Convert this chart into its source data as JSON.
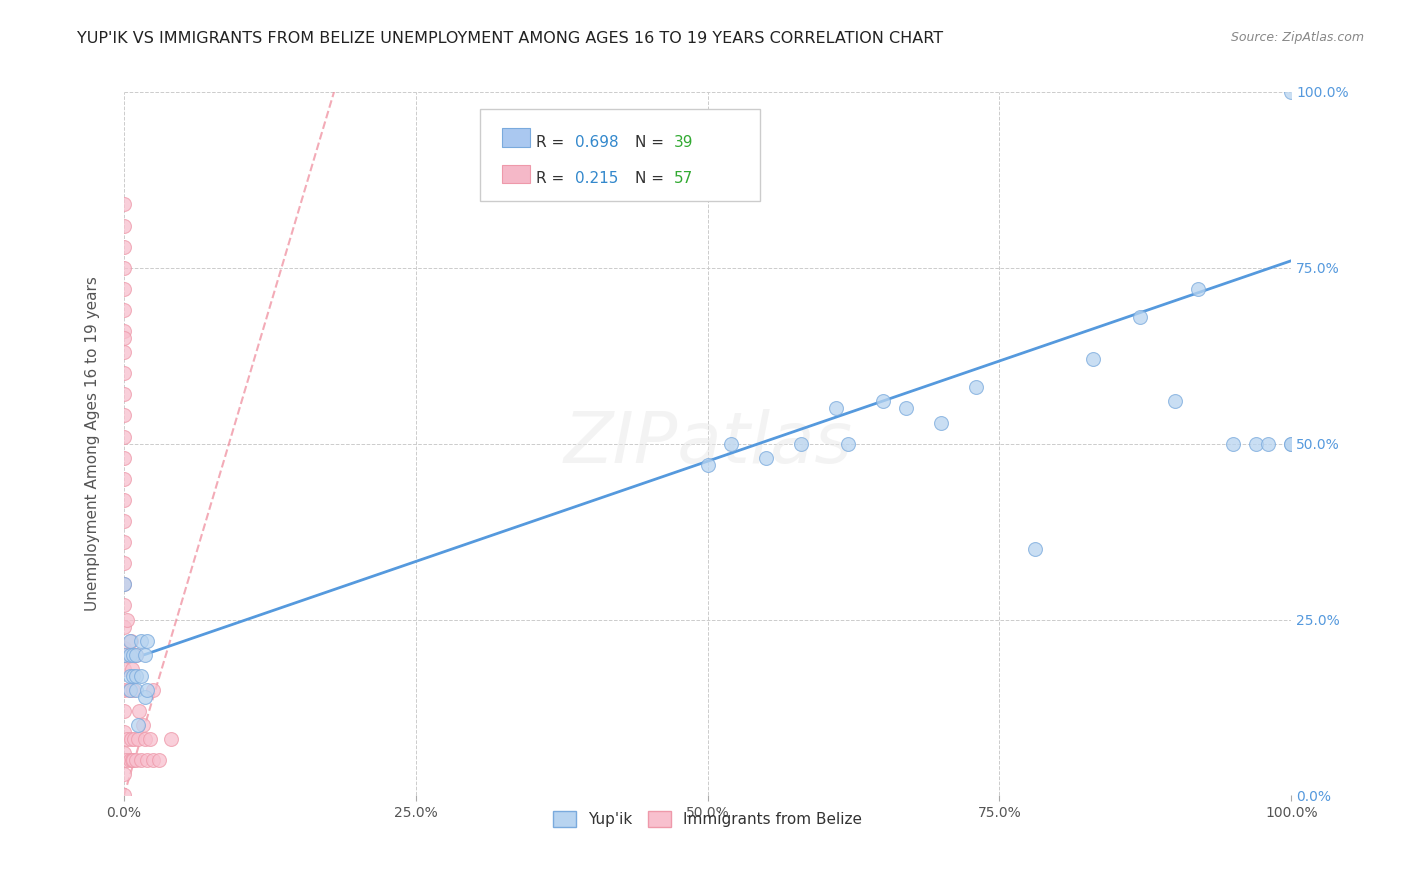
{
  "title": "YUP'IK VS IMMIGRANTS FROM BELIZE UNEMPLOYMENT AMONG AGES 16 TO 19 YEARS CORRELATION CHART",
  "source": "Source: ZipAtlas.com",
  "ylabel": "Unemployment Among Ages 16 to 19 years",
  "xlim": [
    0.0,
    1.0
  ],
  "ylim": [
    0.0,
    1.0
  ],
  "legend_color1": "#aac8f0",
  "legend_color2": "#f5b8c8",
  "r_color": "#3388cc",
  "n_color": "#33aa33",
  "blue_line_color": "#5599dd",
  "pink_line_color": "#ee8899",
  "dot_blue_face": "#b8d4f0",
  "dot_blue_edge": "#7aaadd",
  "dot_pink_face": "#f8c0ce",
  "dot_pink_edge": "#ee99aa",
  "grid_color": "#cccccc",
  "bg_color": "#ffffff",
  "title_color": "#222222",
  "right_tick_color": "#5599dd",
  "yupik_x": [
    0.0,
    0.0,
    0.005,
    0.005,
    0.005,
    0.005,
    0.008,
    0.008,
    0.01,
    0.01,
    0.01,
    0.012,
    0.015,
    0.015,
    0.018,
    0.018,
    0.02,
    0.02,
    0.5,
    0.52,
    0.55,
    0.58,
    0.61,
    0.62,
    0.65,
    0.67,
    0.7,
    0.73,
    0.78,
    0.83,
    0.87,
    0.9,
    0.92,
    0.95,
    0.97,
    0.98,
    1.0,
    1.0,
    1.0
  ],
  "yupik_y": [
    0.3,
    0.2,
    0.15,
    0.17,
    0.2,
    0.22,
    0.17,
    0.2,
    0.15,
    0.17,
    0.2,
    0.1,
    0.17,
    0.22,
    0.14,
    0.2,
    0.15,
    0.22,
    0.47,
    0.5,
    0.48,
    0.5,
    0.55,
    0.5,
    0.56,
    0.55,
    0.53,
    0.58,
    0.35,
    0.62,
    0.68,
    0.56,
    0.72,
    0.5,
    0.5,
    0.5,
    0.5,
    0.5,
    1.0
  ],
  "belize_x": [
    0.0,
    0.0,
    0.0,
    0.0,
    0.0,
    0.0,
    0.0,
    0.0,
    0.0,
    0.0,
    0.0,
    0.0,
    0.0,
    0.0,
    0.0,
    0.0,
    0.0,
    0.0,
    0.0,
    0.0,
    0.0,
    0.0,
    0.0,
    0.0,
    0.0,
    0.0,
    0.0,
    0.0,
    0.0,
    0.0,
    0.002,
    0.002,
    0.003,
    0.003,
    0.004,
    0.005,
    0.005,
    0.006,
    0.006,
    0.007,
    0.007,
    0.008,
    0.008,
    0.009,
    0.01,
    0.01,
    0.012,
    0.013,
    0.015,
    0.016,
    0.018,
    0.02,
    0.022,
    0.025,
    0.025,
    0.03,
    0.04
  ],
  "belize_y": [
    0.0,
    0.03,
    0.06,
    0.09,
    0.12,
    0.15,
    0.18,
    0.21,
    0.24,
    0.27,
    0.3,
    0.33,
    0.36,
    0.39,
    0.42,
    0.45,
    0.48,
    0.51,
    0.54,
    0.57,
    0.6,
    0.63,
    0.66,
    0.69,
    0.72,
    0.75,
    0.78,
    0.81,
    0.84,
    0.65,
    0.05,
    0.2,
    0.08,
    0.25,
    0.15,
    0.05,
    0.2,
    0.08,
    0.22,
    0.05,
    0.18,
    0.05,
    0.15,
    0.08,
    0.05,
    0.2,
    0.08,
    0.12,
    0.05,
    0.1,
    0.08,
    0.05,
    0.08,
    0.05,
    0.15,
    0.05,
    0.08
  ],
  "blue_line_x": [
    0.0,
    1.0
  ],
  "blue_line_y": [
    0.19,
    0.76
  ],
  "pink_line_x": [
    0.0,
    0.18
  ],
  "pink_line_y": [
    0.0,
    1.0
  ]
}
